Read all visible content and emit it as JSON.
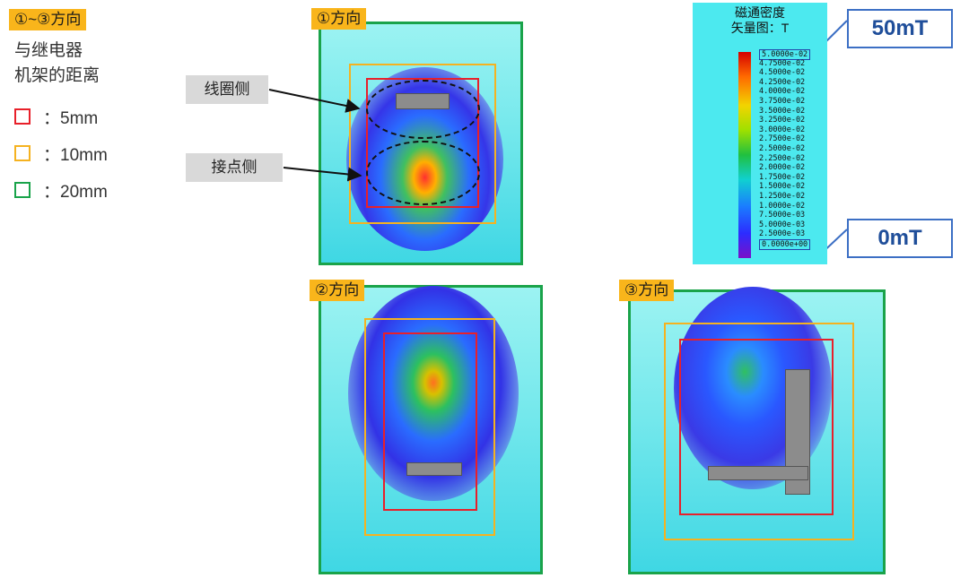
{
  "legend": {
    "title": "①~③方向",
    "line1": "与继电器",
    "line2": "机架的距离",
    "items": [
      {
        "label": "：5mm",
        "color": "#e8202a"
      },
      {
        "label": "：10mm",
        "color": "#f5b220"
      },
      {
        "label": "：20mm",
        "color": "#19a34a"
      }
    ]
  },
  "views": [
    {
      "label": "①方向"
    },
    {
      "label": "②方向"
    },
    {
      "label": "③方向"
    }
  ],
  "callouts": {
    "coil": "线圈侧",
    "contact": "接点侧"
  },
  "scale": {
    "title_line1": "磁通密度",
    "title_line2": "矢量图：T",
    "ticks": [
      "5.0000e-02",
      "4.7500e-02",
      "4.5000e-02",
      "4.2500e-02",
      "4.0000e-02",
      "3.7500e-02",
      "3.5000e-02",
      "3.2500e-02",
      "3.0000e-02",
      "2.7500e-02",
      "2.5000e-02",
      "2.2500e-02",
      "2.0000e-02",
      "1.7500e-02",
      "1.5000e-02",
      "1.2500e-02",
      "1.0000e-02",
      "7.5000e-03",
      "5.0000e-03",
      "2.5000e-03",
      "0.0000e+00"
    ],
    "max_label": "50mT",
    "min_label": "0mT"
  },
  "colors": {
    "frame_5mm": "#e8202a",
    "frame_10mm": "#f5b220",
    "frame_20mm": "#19a34a",
    "accent": "#f9b51b"
  }
}
